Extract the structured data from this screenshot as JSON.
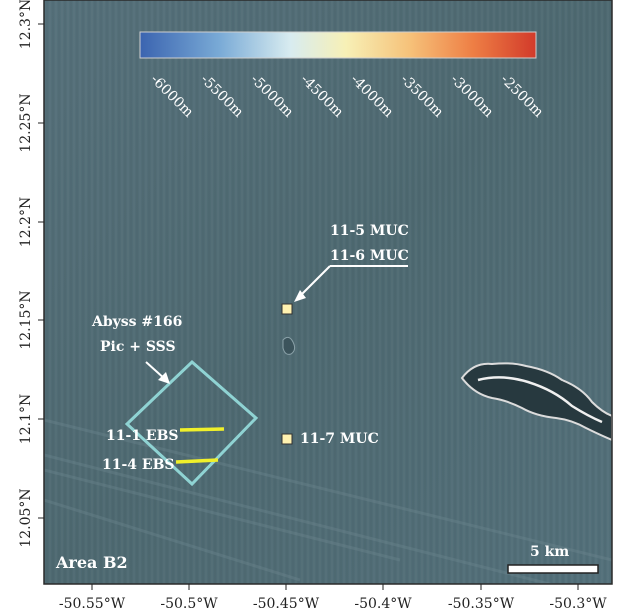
{
  "map": {
    "area_label": "Area B2",
    "scale_bar_label": "5 km",
    "x_ticks": [
      "-50.55°W",
      "-50.5°W",
      "-50.45°W",
      "-50.4°W",
      "-50.35°W",
      "-50.3°W"
    ],
    "y_ticks": [
      "12.3°N",
      "12.25°N",
      "12.2°N",
      "12.15°N",
      "12.1°N",
      "12.05°N"
    ],
    "colorbar": {
      "labels": [
        "-6000m",
        "-5500m",
        "-5000m",
        "-4500m",
        "-4000m",
        "-3500m",
        "-3000m",
        "-2500m"
      ],
      "colors": [
        "#3b64b0",
        "#79aad6",
        "#d8ecf0",
        "#f7f0b6",
        "#f6c27a",
        "#ee7f45",
        "#d23a2a"
      ]
    },
    "annotations": {
      "muc_11_5": "11-5 MUC",
      "muc_11_6": "11-6 MUC",
      "muc_11_7": "11-7 MUC",
      "abyss_line1": "Abyss #166",
      "abyss_line2": "Pic + SSS",
      "ebs_11_1": "11-1 EBS",
      "ebs_11_4": "11-4 EBS"
    },
    "colors": {
      "seafloor": "#4f6a72",
      "frame": "#2a2a2a",
      "survey_box": "#8fd3d3",
      "ebs_track": "#f0f02a",
      "station_marker": "#fff2b0",
      "ridge_light": "#d9d9d9"
    }
  }
}
